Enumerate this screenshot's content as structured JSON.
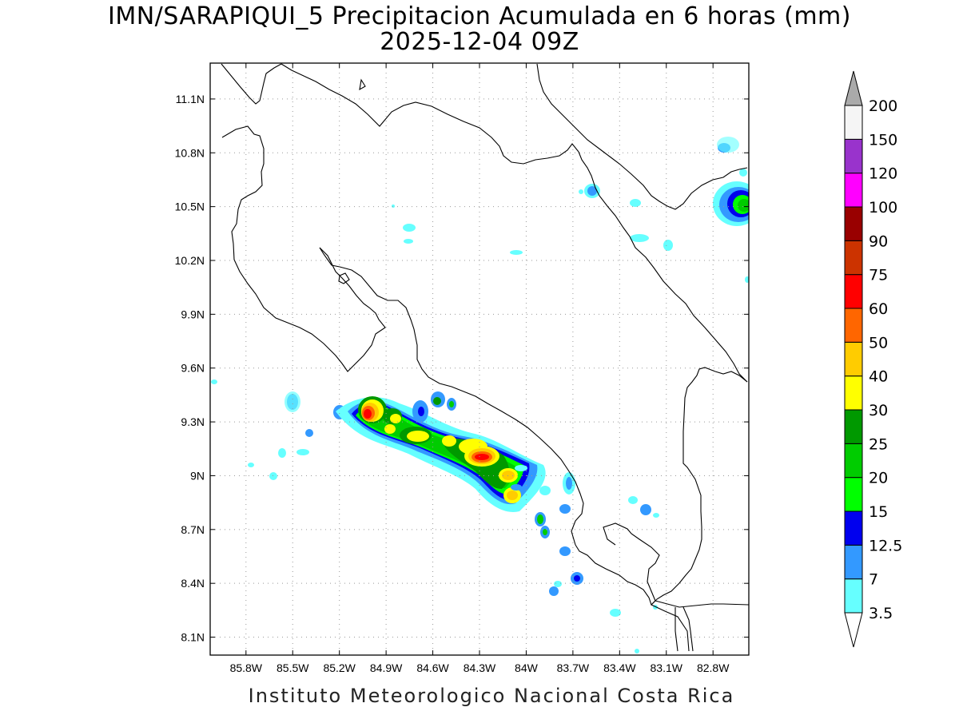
{
  "title": {
    "line1": "IMN/SARAPIQUI_5 Precipitacion Acumulada en 6 horas (mm)",
    "line2": "2025-12-04 09Z"
  },
  "footer": "Instituto Meteorologico Nacional Costa Rica",
  "map": {
    "lon_range": [
      -86.03,
      -82.57
    ],
    "lat_range": [
      8.0,
      11.3
    ],
    "lon_ticks": [
      {
        "value": -85.8,
        "label": "85.8W"
      },
      {
        "value": -85.5,
        "label": "85.5W"
      },
      {
        "value": -85.2,
        "label": "85.2W"
      },
      {
        "value": -84.9,
        "label": "84.9W"
      },
      {
        "value": -84.6,
        "label": "84.6W"
      },
      {
        "value": -84.3,
        "label": "84.3W"
      },
      {
        "value": -84.0,
        "label": "84W"
      },
      {
        "value": -83.7,
        "label": "83.7W"
      },
      {
        "value": -83.4,
        "label": "83.4W"
      },
      {
        "value": -83.1,
        "label": "83.1W"
      },
      {
        "value": -82.8,
        "label": "82.8W"
      }
    ],
    "lat_ticks": [
      {
        "value": 8.1,
        "label": "8.1N"
      },
      {
        "value": 8.4,
        "label": "8.4N"
      },
      {
        "value": 8.7,
        "label": "8.7N"
      },
      {
        "value": 9.0,
        "label": "9N"
      },
      {
        "value": 9.3,
        "label": "9.3N"
      },
      {
        "value": 9.6,
        "label": "9.6N"
      },
      {
        "value": 9.9,
        "label": "9.9N"
      },
      {
        "value": 10.2,
        "label": "10.2N"
      },
      {
        "value": 10.5,
        "label": "10.5N"
      },
      {
        "value": 10.8,
        "label": "10.8N"
      },
      {
        "value": 11.1,
        "label": "11.1N"
      }
    ],
    "grid": true
  },
  "colorbar": {
    "levels": [
      "3.5",
      "7",
      "12.5",
      "15",
      "20",
      "25",
      "30",
      "40",
      "50",
      "60",
      "75",
      "90",
      "100",
      "120",
      "150",
      "200"
    ],
    "colors": [
      "#66ffff",
      "#3399ff",
      "#0000ee",
      "#00ff00",
      "#00cc00",
      "#009900",
      "#ffff00",
      "#ffcc00",
      "#ff6600",
      "#ff0000",
      "#cc3300",
      "#990000",
      "#ff00ff",
      "#9933cc",
      "#f5f5f5"
    ],
    "over_color": "#aaaaaa",
    "under_color": "#ffffff"
  },
  "precip_cells": [
    {
      "lon": -84.99,
      "lat": 9.34,
      "rx": 0.06,
      "ry": 0.06,
      "level": 9
    },
    {
      "lon": -84.93,
      "lat": 9.32,
      "rx": 0.05,
      "ry": 0.05,
      "level": 6
    },
    {
      "lon": -84.86,
      "lat": 9.3,
      "rx": 0.03,
      "ry": 0.03,
      "level": 5
    },
    {
      "lon": -84.88,
      "lat": 9.26,
      "rx": 0.03,
      "ry": 0.02,
      "level": 7
    },
    {
      "lon": -84.81,
      "lat": 9.25,
      "rx": 0.03,
      "ry": 0.03,
      "level": 5
    },
    {
      "lon": -84.72,
      "lat": 9.22,
      "rx": 0.05,
      "ry": 0.03,
      "level": 7
    },
    {
      "lon": -84.64,
      "lat": 9.36,
      "rx": 0.02,
      "ry": 0.03,
      "level": 2
    },
    {
      "lon": -84.56,
      "lat": 9.42,
      "rx": 0.02,
      "ry": 0.02,
      "level": 5
    },
    {
      "lon": -84.47,
      "lat": 9.38,
      "rx": 0.02,
      "ry": 0.02,
      "level": 3
    },
    {
      "lon": -84.44,
      "lat": 9.19,
      "rx": 0.03,
      "ry": 0.02,
      "level": 6
    },
    {
      "lon": -84.33,
      "lat": 9.18,
      "rx": 0.06,
      "ry": 0.04,
      "level": 6
    },
    {
      "lon": -84.23,
      "lat": 9.11,
      "rx": 0.06,
      "ry": 0.04,
      "level": 9
    },
    {
      "lon": -84.07,
      "lat": 9.01,
      "rx": 0.04,
      "ry": 0.03,
      "level": 7
    },
    {
      "lon": -84.05,
      "lat": 8.87,
      "rx": 0.04,
      "ry": 0.03,
      "level": 7
    },
    {
      "lon": -83.86,
      "lat": 8.77,
      "rx": 0.02,
      "ry": 0.03,
      "level": 4
    },
    {
      "lon": -83.83,
      "lat": 8.68,
      "rx": 0.02,
      "ry": 0.02,
      "level": 4
    },
    {
      "lon": -83.62,
      "lat": 8.42,
      "rx": 0.02,
      "ry": 0.02,
      "level": 3
    },
    {
      "lon": -82.6,
      "lat": 10.51,
      "rx": 0.05,
      "ry": 0.05,
      "level": 4
    }
  ]
}
